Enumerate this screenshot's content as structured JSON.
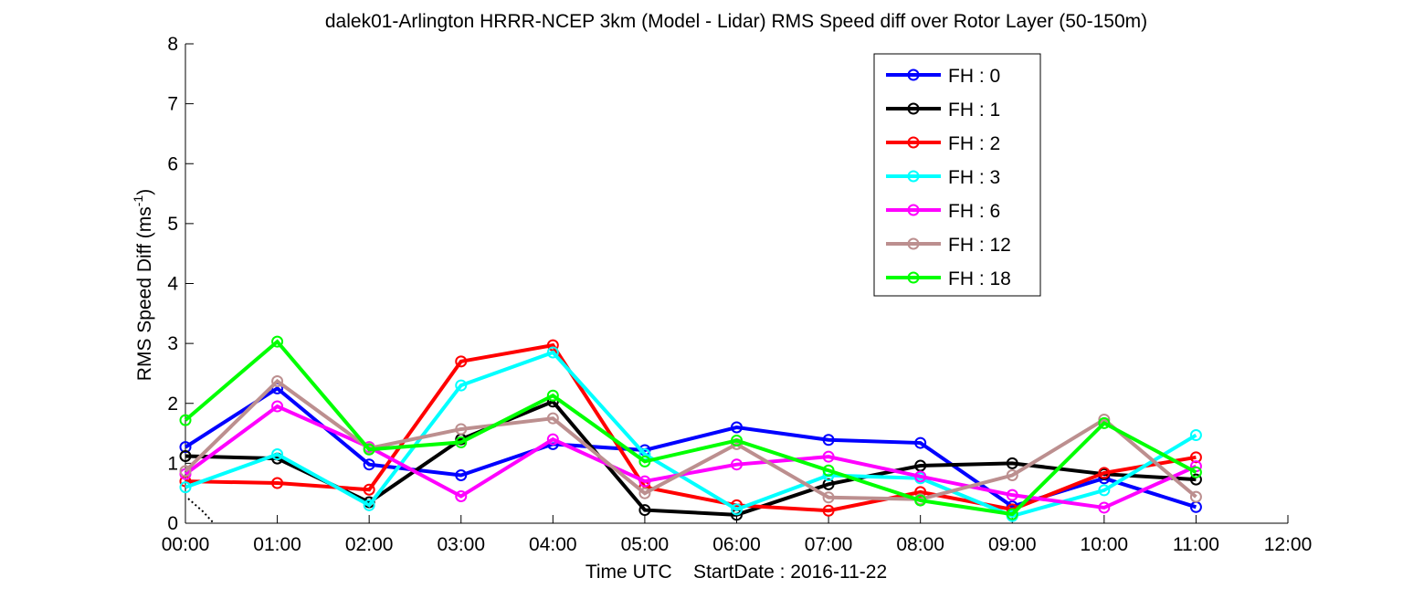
{
  "chart_data": {
    "type": "line",
    "title": "dalek01-Arlington HRRR-NCEP 3km (Model - Lidar) RMS Speed diff over Rotor Layer (50-150m)",
    "ylabel_main": "RMS Speed Diff (ms",
    "ylabel_sup": "-1",
    "ylabel_end": ")",
    "xlabel": "Time UTC    StartDate : 2016-11-22",
    "x_hours": [
      0,
      1,
      2,
      3,
      4,
      5,
      6,
      7,
      8,
      9,
      10,
      11
    ],
    "xlim": [
      0,
      12
    ],
    "ylim": [
      0,
      8
    ],
    "x_tick_labels": [
      "00:00",
      "01:00",
      "02:00",
      "03:00",
      "04:00",
      "05:00",
      "06:00",
      "07:00",
      "08:00",
      "09:00",
      "10:00",
      "11:00",
      "12:00"
    ],
    "y_tick_labels": [
      "0",
      "1",
      "2",
      "3",
      "4",
      "5",
      "6",
      "7",
      "8"
    ],
    "legend_position": "top-right",
    "series": [
      {
        "name": "FH : 0",
        "color": "#0000ff",
        "values": [
          1.27,
          2.25,
          0.98,
          0.8,
          1.32,
          1.22,
          1.6,
          1.39,
          1.34,
          0.28,
          0.75,
          0.27
        ]
      },
      {
        "name": "FH : 1",
        "color": "#000000",
        "values": [
          1.12,
          1.08,
          0.35,
          1.4,
          2.03,
          0.22,
          0.14,
          0.65,
          0.96,
          1.0,
          0.82,
          0.73
        ]
      },
      {
        "name": "FH : 2",
        "color": "#ff0000",
        "values": [
          0.7,
          0.67,
          0.56,
          2.7,
          2.97,
          0.6,
          0.3,
          0.21,
          0.52,
          0.23,
          0.84,
          1.1
        ]
      },
      {
        "name": "FH : 3",
        "color": "#00ffff",
        "values": [
          0.6,
          1.15,
          0.3,
          2.3,
          2.85,
          1.15,
          0.23,
          0.8,
          0.75,
          0.12,
          0.55,
          1.47
        ]
      },
      {
        "name": "FH : 6",
        "color": "#ff00ff",
        "values": [
          0.82,
          1.95,
          1.27,
          0.45,
          1.4,
          0.7,
          0.98,
          1.11,
          0.78,
          0.47,
          0.26,
          0.95
        ]
      },
      {
        "name": "FH : 12",
        "color": "#bc8f8f",
        "values": [
          0.87,
          2.37,
          1.25,
          1.57,
          1.75,
          0.5,
          1.32,
          0.43,
          0.4,
          0.8,
          1.73,
          0.44
        ]
      },
      {
        "name": "FH : 18",
        "color": "#00ff00",
        "values": [
          1.72,
          3.03,
          1.23,
          1.35,
          2.13,
          1.03,
          1.38,
          0.88,
          0.38,
          0.15,
          1.67,
          0.85
        ]
      }
    ]
  }
}
